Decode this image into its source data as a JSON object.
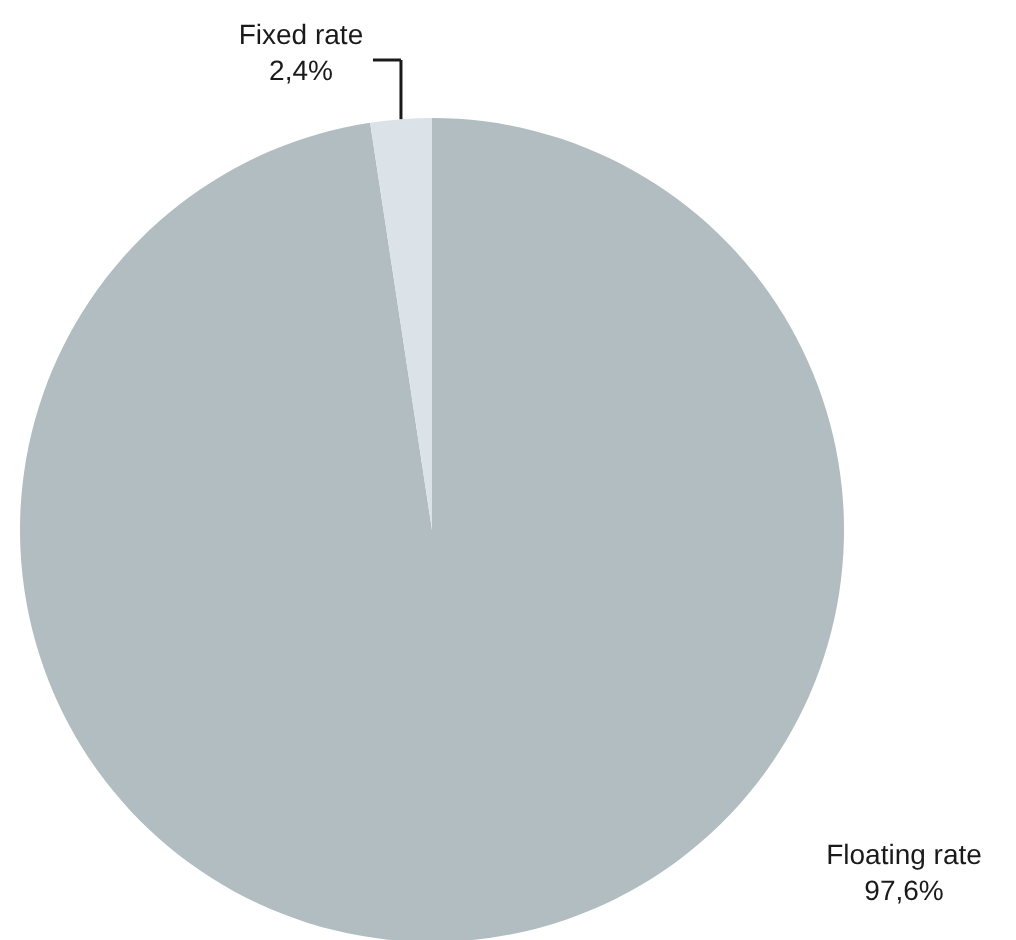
{
  "chart_data": {
    "type": "pie",
    "categories": [
      "Floating rate",
      "Fixed rate"
    ],
    "values": [
      97.6,
      2.4
    ],
    "colors": [
      "#b1bdc0",
      "#dbe3e8"
    ],
    "value_labels": [
      "97,6%",
      "2,4%"
    ]
  }
}
